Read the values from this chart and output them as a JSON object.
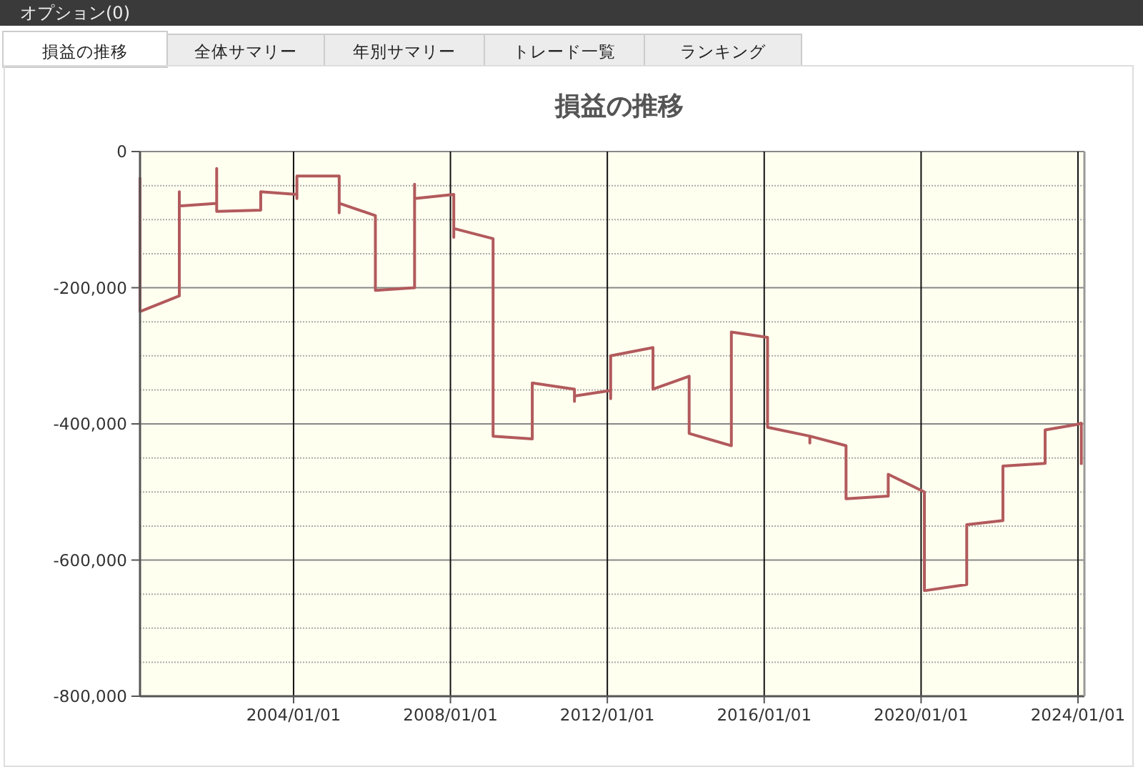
{
  "chart_data": {
    "type": "line",
    "title": "損益の推移",
    "annotations": [
      "オプション(0)",
      "損益の推移",
      "全体サマリー",
      "年別サマリー",
      "トレード一覧",
      "ランキング"
    ],
    "x": [
      "2000-02-01",
      "2000-02-01",
      "2001-02-01",
      "2001-02-01",
      "2001-02-01",
      "2002-01-15",
      "2002-01-15",
      "2002-01-15",
      "2003-03-01",
      "2003-03-01",
      "2004-02-01",
      "2004-02-01",
      "2004-02-01",
      "2005-03-01",
      "2005-03-01",
      "2005-03-01",
      "2006-02-01",
      "2006-02-01",
      "2007-02-01",
      "2007-02-01",
      "2007-02-01",
      "2008-02-01",
      "2008-02-01",
      "2008-02-01",
      "2009-02-01",
      "2009-02-01",
      "2010-02-01",
      "2010-02-01",
      "2011-03-01",
      "2011-03-01",
      "2011-03-01",
      "2012-02-01",
      "2012-02-01",
      "2012-02-01",
      "2013-03-01",
      "2013-03-01",
      "2014-02-01",
      "2014-02-01",
      "2015-03-01",
      "2015-03-01",
      "2016-02-01",
      "2016-02-01",
      "2017-03-01",
      "2017-03-01",
      "2017-03-01",
      "2018-02-01",
      "2018-02-01",
      "2019-03-01",
      "2019-03-01",
      "2020-02-01",
      "2020-02-01",
      "2021-03-01",
      "2021-03-01",
      "2022-02-01",
      "2022-02-01",
      "2023-03-01",
      "2023-03-01",
      "2023-12-15",
      "2024-02-01",
      "2024-02-01"
    ],
    "series": [
      {
        "color": "#b25a5c",
        "values": [
          -38000,
          -235000,
          -212000,
          -59000,
          -80000,
          -76000,
          -25000,
          -88000,
          -86000,
          -59000,
          -63000,
          -69000,
          -36000,
          -36000,
          -90000,
          -76000,
          -94000,
          -204000,
          -200000,
          -48000,
          -69000,
          -63000,
          -126000,
          -113000,
          -128000,
          -418000,
          -422000,
          -340000,
          -349000,
          -367000,
          -359000,
          -351000,
          -363000,
          -300000,
          -288000,
          -349000,
          -330000,
          -414000,
          -432000,
          -265000,
          -273000,
          -405000,
          -418000,
          -428000,
          -418000,
          -432000,
          -510000,
          -506000,
          -474000,
          -500000,
          -645000,
          -636000,
          -548000,
          -542000,
          -462000,
          -458000,
          -409000,
          -401000,
          -399000,
          -460000
        ]
      }
    ],
    "xlim": [
      "2000-02-01",
      "2024-03-01"
    ],
    "xticks": [
      {
        "value": "2004-01-01",
        "label": "2004/01/01"
      },
      {
        "value": "2008-01-01",
        "label": "2008/01/01"
      },
      {
        "value": "2012-01-01",
        "label": "2012/01/01"
      },
      {
        "value": "2016-01-01",
        "label": "2016/01/01"
      },
      {
        "value": "2020-01-01",
        "label": "2020/01/01"
      },
      {
        "value": "2024-01-01",
        "label": "2024/01/01"
      }
    ],
    "ylim": [
      -800000,
      0
    ],
    "yticks": [
      {
        "value": -800000,
        "label": "-800,000"
      },
      {
        "value": -600000,
        "label": "-600,000"
      },
      {
        "value": -400000,
        "label": "-400,000"
      },
      {
        "value": -200000,
        "label": "-200,000"
      },
      0
    ],
    "grid": true,
    "line_style": "solid",
    "marker": "none"
  }
}
